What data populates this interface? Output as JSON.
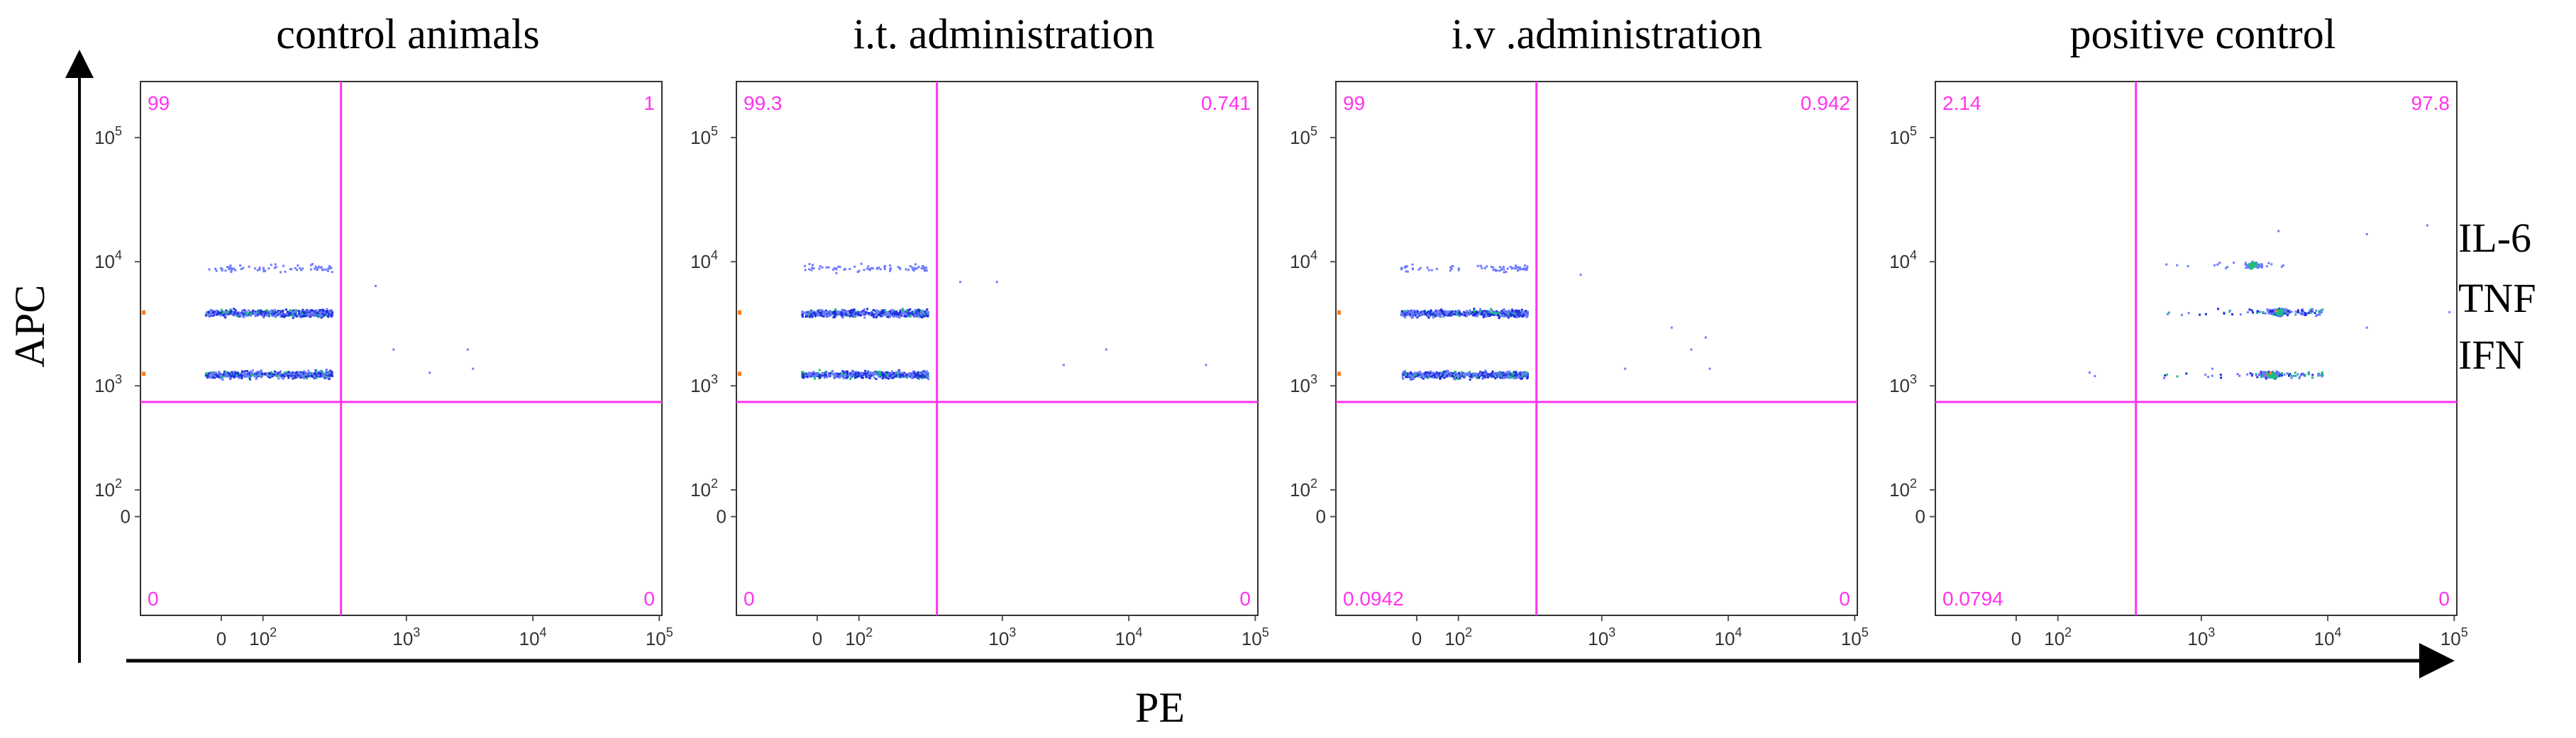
{
  "figure": {
    "axis_label_y": "APC",
    "axis_label_x": "PE",
    "cytokines": [
      "IL-6",
      "TNF",
      "IFN"
    ]
  },
  "colors": {
    "gate": "#ff33ee",
    "quadrant_text": "#ff33ee",
    "frame": "#333333",
    "dot_low": "#6f7cff",
    "dot_mid": "#1c2fd9",
    "dot_high": "#11c27a",
    "dot_peak": "#ff7a1a"
  },
  "chart_data": [
    {
      "type": "scatter",
      "title": "control animals",
      "xlabel": "",
      "ylabel": "",
      "x_ticks": [
        "0",
        "10^2",
        "10^3",
        "10^4",
        "10^5"
      ],
      "y_ticks": [
        "0",
        "10^2",
        "10^3",
        "10^4",
        "10^5"
      ],
      "x_gate": 350,
      "y_gate": 700,
      "quadrants": {
        "upper_left": "99",
        "upper_right": "1",
        "lower_left": "0",
        "lower_right": "0"
      },
      "populations": [
        {
          "name": "IL-6",
          "y": 9000,
          "x_range": [
            -40,
            300
          ],
          "density": "low"
        },
        {
          "name": "TNF",
          "y": 3900,
          "x_range": [
            -40,
            300
          ],
          "density": "high"
        },
        {
          "name": "IFN",
          "y": 1250,
          "x_range": [
            -40,
            300
          ],
          "density": "high"
        }
      ],
      "scatter_extra": [
        [
          600,
          6500
        ],
        [
          800,
          2000
        ],
        [
          1500,
          1300
        ],
        [
          3000,
          2000
        ],
        [
          3300,
          1400
        ]
      ]
    },
    {
      "type": "scatter",
      "title": "i.t. administration",
      "xlabel": "",
      "ylabel": "",
      "x_ticks": [
        "0",
        "10^2",
        "10^3",
        "10^4",
        "10^5"
      ],
      "y_ticks": [
        "0",
        "10^2",
        "10^3",
        "10^4",
        "10^5"
      ],
      "x_gate": 350,
      "y_gate": 700,
      "quadrants": {
        "upper_left": "99.3",
        "upper_right": "0.741",
        "lower_left": "0",
        "lower_right": "0"
      },
      "populations": [
        {
          "name": "IL-6",
          "y": 9000,
          "x_range": [
            -40,
            300
          ],
          "density": "low"
        },
        {
          "name": "TNF",
          "y": 3900,
          "x_range": [
            -40,
            300
          ],
          "density": "high"
        },
        {
          "name": "IFN",
          "y": 1250,
          "x_range": [
            -40,
            300
          ],
          "density": "high"
        }
      ],
      "scatter_extra": [
        [
          500,
          7000
        ],
        [
          900,
          7000
        ],
        [
          3000,
          1500
        ],
        [
          6500,
          2000
        ],
        [
          40000,
          1500
        ]
      ]
    },
    {
      "type": "scatter",
      "title": "i.v .administration",
      "xlabel": "",
      "ylabel": "",
      "x_ticks": [
        "0",
        "10^2",
        "10^3",
        "10^4",
        "10^5"
      ],
      "y_ticks": [
        "0",
        "10^2",
        "10^3",
        "10^4",
        "10^5"
      ],
      "x_gate": 350,
      "y_gate": 700,
      "quadrants": {
        "upper_left": "99",
        "upper_right": "0.942",
        "lower_left": "0.0942",
        "lower_right": "0"
      },
      "populations": [
        {
          "name": "IL-6",
          "y": 9000,
          "x_range": [
            -40,
            300
          ],
          "density": "low"
        },
        {
          "name": "TNF",
          "y": 3900,
          "x_range": [
            -40,
            300
          ],
          "density": "high"
        },
        {
          "name": "IFN",
          "y": 1250,
          "x_range": [
            -40,
            300
          ],
          "density": "high"
        }
      ],
      "scatter_extra": [
        [
          700,
          8000
        ],
        [
          1500,
          1400
        ],
        [
          3500,
          3000
        ],
        [
          5000,
          2000
        ],
        [
          6500,
          2500
        ],
        [
          7000,
          1400
        ]
      ]
    },
    {
      "type": "scatter",
      "title": "positive control",
      "xlabel": "",
      "ylabel": "",
      "x_ticks": [
        "0",
        "10^2",
        "10^3",
        "10^4",
        "10^5"
      ],
      "y_ticks": [
        "0",
        "10^2",
        "10^3",
        "10^4",
        "10^5"
      ],
      "x_gate": 350,
      "y_gate": 700,
      "quadrants": {
        "upper_left": "2.14",
        "upper_right": "97.8",
        "lower_left": "0.0794",
        "lower_right": "0"
      },
      "populations": [
        {
          "name": "IL-6",
          "y": 9500,
          "x_range": [
            500,
            5000
          ],
          "density": "low",
          "cluster_x": 2500
        },
        {
          "name": "TNF",
          "y": 4000,
          "x_range": [
            500,
            9000
          ],
          "density": "mid",
          "cluster_x": 4000
        },
        {
          "name": "IFN",
          "y": 1250,
          "x_range": [
            80,
            9000
          ],
          "density": "mid",
          "cluster_x": 3500
        }
      ],
      "scatter_extra": [
        [
          4000,
          18000
        ],
        [
          20000,
          17000
        ],
        [
          60000,
          20000
        ],
        [
          1200,
          1400
        ],
        [
          20000,
          3000
        ],
        [
          90000,
          4000
        ]
      ]
    }
  ]
}
